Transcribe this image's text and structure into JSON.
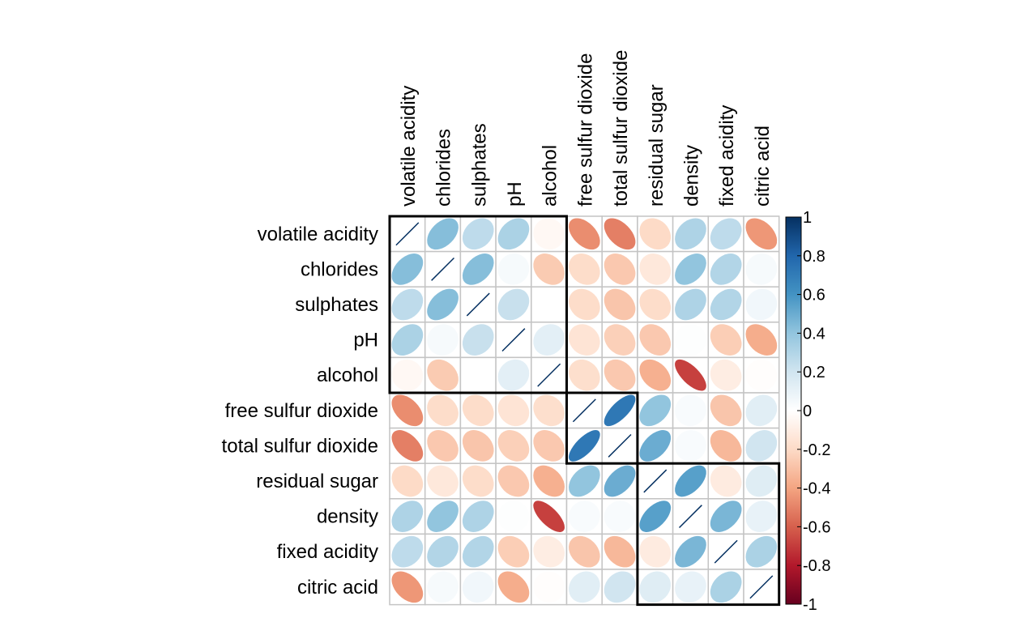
{
  "chart_data": {
    "type": "heatmap",
    "variables": [
      "volatile acidity",
      "chlorides",
      "sulphates",
      "pH",
      "alcohol",
      "free sulfur dioxide",
      "total sulfur dioxide",
      "residual sugar",
      "density",
      "fixed acidity",
      "citric acid"
    ],
    "matrix": [
      [
        1.0,
        0.43,
        0.26,
        0.32,
        -0.04,
        -0.47,
        -0.51,
        -0.2,
        0.31,
        0.26,
        -0.44
      ],
      [
        0.43,
        1.0,
        0.43,
        0.04,
        -0.26,
        -0.19,
        -0.27,
        -0.13,
        0.4,
        0.3,
        0.04
      ],
      [
        0.26,
        0.43,
        1.0,
        0.23,
        0.0,
        -0.19,
        -0.28,
        -0.19,
        0.31,
        0.3,
        0.06
      ],
      [
        0.32,
        0.04,
        0.23,
        1.0,
        0.12,
        -0.15,
        -0.24,
        -0.27,
        0.01,
        -0.25,
        -0.37
      ],
      [
        -0.04,
        -0.26,
        0.0,
        0.12,
        1.0,
        -0.18,
        -0.27,
        -0.36,
        -0.69,
        -0.1,
        -0.01
      ],
      [
        -0.47,
        -0.19,
        -0.19,
        -0.15,
        -0.18,
        1.0,
        0.72,
        0.4,
        0.03,
        -0.28,
        0.13
      ],
      [
        -0.51,
        -0.27,
        -0.28,
        -0.24,
        -0.27,
        0.72,
        1.0,
        0.5,
        0.03,
        -0.33,
        0.2
      ],
      [
        -0.2,
        -0.13,
        -0.19,
        -0.27,
        -0.36,
        0.4,
        0.5,
        1.0,
        0.55,
        -0.11,
        0.14
      ],
      [
        0.31,
        0.4,
        0.31,
        0.01,
        -0.69,
        0.03,
        0.03,
        0.55,
        1.0,
        0.46,
        0.1
      ],
      [
        0.26,
        0.3,
        0.3,
        -0.25,
        -0.1,
        -0.28,
        -0.33,
        -0.11,
        0.46,
        1.0,
        0.32
      ],
      [
        -0.44,
        0.04,
        0.06,
        -0.37,
        -0.01,
        0.13,
        0.2,
        0.14,
        0.1,
        0.32,
        1.0
      ]
    ],
    "clusters": [
      [
        1,
        5
      ],
      [
        6,
        7
      ],
      [
        8,
        11
      ]
    ],
    "colorbar": {
      "range": [
        -1,
        1
      ],
      "tick_labels": [
        "-1",
        "-0.8",
        "-0.6",
        "-0.4",
        "-0.2",
        "0",
        "0.2",
        "0.4",
        "0.6",
        "0.8",
        "1"
      ],
      "colors": [
        "#67001F",
        "#B2182B",
        "#D6604D",
        "#F4A582",
        "#FDDBC7",
        "#FFFFFF",
        "#D1E5F0",
        "#92C5DE",
        "#4393C3",
        "#2166AC",
        "#053061"
      ]
    },
    "method": "ellipse",
    "grid": true,
    "legend_position": "right"
  }
}
